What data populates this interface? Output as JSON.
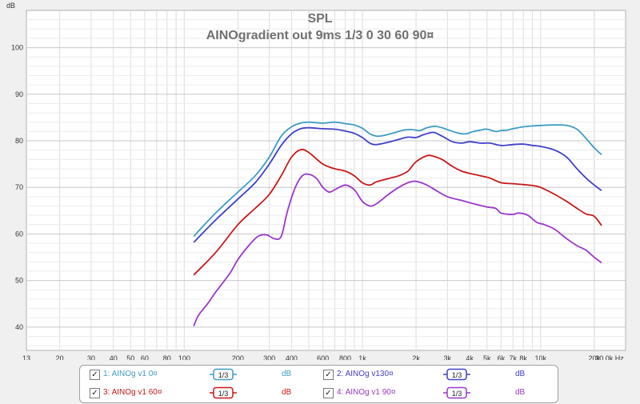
{
  "chart_data": {
    "type": "line",
    "title": "SPL",
    "subtitle": "AINOgradient out 9ms 1/3 0 30 60 90¤",
    "xscale": "log",
    "xlim": [
      13,
      30000
    ],
    "ylim": [
      35,
      108
    ],
    "yunit": "dB",
    "xunit": "Hz",
    "grid": true,
    "x_ticks": [
      {
        "v": 13,
        "l": "13"
      },
      {
        "v": 20,
        "l": "20"
      },
      {
        "v": 30,
        "l": "30"
      },
      {
        "v": 40,
        "l": "40"
      },
      {
        "v": 50,
        "l": "50"
      },
      {
        "v": 60,
        "l": "60"
      },
      {
        "v": 80,
        "l": "80"
      },
      {
        "v": 100,
        "l": "100"
      },
      {
        "v": 200,
        "l": "200"
      },
      {
        "v": 300,
        "l": "300"
      },
      {
        "v": 400,
        "l": "400"
      },
      {
        "v": 600,
        "l": "600"
      },
      {
        "v": 800,
        "l": "800"
      },
      {
        "v": 1000,
        "l": "1k"
      },
      {
        "v": 2000,
        "l": "2k"
      },
      {
        "v": 3000,
        "l": "3k"
      },
      {
        "v": 4000,
        "l": "4k"
      },
      {
        "v": 5000,
        "l": "5k"
      },
      {
        "v": 6000,
        "l": "6k"
      },
      {
        "v": 7000,
        "l": "7k"
      },
      {
        "v": 8000,
        "l": "8k"
      },
      {
        "v": 10000,
        "l": "10k"
      },
      {
        "v": 20000,
        "l": "20k"
      },
      {
        "v": 30000,
        "l": "30,0k Hz"
      }
    ],
    "y_ticks": [
      40,
      50,
      60,
      70,
      80,
      90,
      100
    ],
    "legend_position": "bottom",
    "series": [
      {
        "name": "1: AINOg v1 0¤",
        "color": "#3e9cc4",
        "points": [
          [
            113,
            59.5
          ],
          [
            150,
            64.5
          ],
          [
            200,
            69
          ],
          [
            250,
            72.5
          ],
          [
            300,
            76.5
          ],
          [
            350,
            81
          ],
          [
            400,
            83
          ],
          [
            450,
            83.8
          ],
          [
            500,
            84
          ],
          [
            600,
            83.8
          ],
          [
            700,
            84
          ],
          [
            800,
            83.7
          ],
          [
            900,
            83.4
          ],
          [
            1000,
            82.7
          ],
          [
            1100,
            81.5
          ],
          [
            1200,
            81
          ],
          [
            1300,
            81.1
          ],
          [
            1500,
            81.7
          ],
          [
            1700,
            82.3
          ],
          [
            1900,
            82.4
          ],
          [
            2100,
            82.2
          ],
          [
            2300,
            82.8
          ],
          [
            2600,
            83.1
          ],
          [
            3000,
            82.4
          ],
          [
            3400,
            81.7
          ],
          [
            3800,
            81.5
          ],
          [
            4200,
            82
          ],
          [
            4600,
            82.3
          ],
          [
            5000,
            82.5
          ],
          [
            5600,
            82
          ],
          [
            6000,
            82.2
          ],
          [
            6500,
            82.3
          ],
          [
            7000,
            82.6
          ],
          [
            8000,
            83
          ],
          [
            9000,
            83.2
          ],
          [
            10000,
            83.3
          ],
          [
            12000,
            83.4
          ],
          [
            14000,
            83.3
          ],
          [
            16000,
            82.5
          ],
          [
            18000,
            80.5
          ],
          [
            20000,
            78.5
          ],
          [
            22000,
            77
          ]
        ]
      },
      {
        "name": "2: AINOg v130¤",
        "color": "#4040c8",
        "points": [
          [
            113,
            58.2
          ],
          [
            150,
            63
          ],
          [
            200,
            67.5
          ],
          [
            250,
            71
          ],
          [
            300,
            75
          ],
          [
            350,
            79
          ],
          [
            400,
            81.5
          ],
          [
            450,
            82.6
          ],
          [
            500,
            82.8
          ],
          [
            600,
            82.6
          ],
          [
            700,
            82.5
          ],
          [
            800,
            82.1
          ],
          [
            900,
            81.6
          ],
          [
            1000,
            80.7
          ],
          [
            1100,
            79.5
          ],
          [
            1200,
            79.2
          ],
          [
            1400,
            79.7
          ],
          [
            1600,
            80.3
          ],
          [
            1800,
            80.8
          ],
          [
            2000,
            80.7
          ],
          [
            2200,
            81.3
          ],
          [
            2500,
            81.8
          ],
          [
            2800,
            81
          ],
          [
            3200,
            79.8
          ],
          [
            3600,
            79.5
          ],
          [
            4000,
            79.8
          ],
          [
            4600,
            79.5
          ],
          [
            5200,
            79.5
          ],
          [
            6000,
            79
          ],
          [
            7000,
            79.2
          ],
          [
            8000,
            79.3
          ],
          [
            9000,
            79
          ],
          [
            10000,
            78.8
          ],
          [
            12000,
            78
          ],
          [
            14000,
            76.5
          ],
          [
            16000,
            74
          ],
          [
            18000,
            72
          ],
          [
            20000,
            70.5
          ],
          [
            22000,
            69.3
          ]
        ]
      },
      {
        "name": "3: AINOg v1 60¤",
        "color": "#c81818",
        "points": [
          [
            113,
            51.2
          ],
          [
            150,
            56
          ],
          [
            200,
            62
          ],
          [
            250,
            65.5
          ],
          [
            300,
            68.5
          ],
          [
            350,
            72.5
          ],
          [
            400,
            76.5
          ],
          [
            450,
            78.1
          ],
          [
            500,
            77.5
          ],
          [
            600,
            75
          ],
          [
            700,
            74
          ],
          [
            800,
            73.5
          ],
          [
            900,
            72.5
          ],
          [
            1000,
            71
          ],
          [
            1100,
            70.5
          ],
          [
            1200,
            71.2
          ],
          [
            1400,
            71.9
          ],
          [
            1600,
            72.5
          ],
          [
            1800,
            73.5
          ],
          [
            2000,
            75.5
          ],
          [
            2300,
            76.8
          ],
          [
            2500,
            76.7
          ],
          [
            2800,
            76
          ],
          [
            3200,
            74.5
          ],
          [
            3600,
            73.5
          ],
          [
            4000,
            73
          ],
          [
            4600,
            72.5
          ],
          [
            5200,
            72
          ],
          [
            6000,
            71
          ],
          [
            7000,
            70.8
          ],
          [
            8000,
            70.6
          ],
          [
            9000,
            70.4
          ],
          [
            10000,
            70
          ],
          [
            12000,
            68.5
          ],
          [
            14000,
            67
          ],
          [
            16000,
            65.5
          ],
          [
            18000,
            64.3
          ],
          [
            20000,
            63.8
          ],
          [
            22000,
            61.8
          ]
        ]
      },
      {
        "name": "4: AINOg v1 90¤",
        "color": "#9a38c8",
        "points": [
          [
            113,
            40.2
          ],
          [
            120,
            42.5
          ],
          [
            135,
            45
          ],
          [
            150,
            47.5
          ],
          [
            180,
            51.5
          ],
          [
            200,
            54.5
          ],
          [
            230,
            57.5
          ],
          [
            260,
            59.5
          ],
          [
            290,
            59.8
          ],
          [
            320,
            59
          ],
          [
            350,
            59.5
          ],
          [
            380,
            65
          ],
          [
            420,
            70
          ],
          [
            460,
            72.5
          ],
          [
            500,
            72.8
          ],
          [
            550,
            72
          ],
          [
            600,
            70
          ],
          [
            650,
            69
          ],
          [
            700,
            69.5
          ],
          [
            800,
            70.5
          ],
          [
            900,
            69.5
          ],
          [
            1000,
            67
          ],
          [
            1100,
            66
          ],
          [
            1200,
            66.5
          ],
          [
            1400,
            68.5
          ],
          [
            1600,
            70
          ],
          [
            1800,
            71
          ],
          [
            2000,
            71.3
          ],
          [
            2300,
            70.5
          ],
          [
            2600,
            69.3
          ],
          [
            3000,
            68
          ],
          [
            3600,
            67.2
          ],
          [
            4200,
            66.5
          ],
          [
            5000,
            65.8
          ],
          [
            5600,
            65.5
          ],
          [
            6000,
            64.5
          ],
          [
            7000,
            64.2
          ],
          [
            7500,
            64.5
          ],
          [
            8500,
            64
          ],
          [
            9500,
            62.5
          ],
          [
            10500,
            62
          ],
          [
            12000,
            61
          ],
          [
            14000,
            59
          ],
          [
            16000,
            57.5
          ],
          [
            18000,
            56.5
          ],
          [
            20000,
            55
          ],
          [
            22000,
            53.8
          ]
        ]
      }
    ]
  },
  "legend": {
    "items": [
      {
        "check": "✓",
        "label": "1: AINOg v1 0¤",
        "smoothing": "1/3",
        "unit": "dB",
        "color": "#3e9cc4"
      },
      {
        "check": "✓",
        "label": "2: AINOg v130¤",
        "smoothing": "1/3",
        "unit": "dB",
        "color": "#4040c8"
      },
      {
        "check": "✓",
        "label": "3: AINOg v1 60¤",
        "smoothing": "1/3",
        "unit": "dB",
        "color": "#c81818"
      },
      {
        "check": "✓",
        "label": "4: AINOg v1 90¤",
        "smoothing": "1/3",
        "unit": "dB",
        "color": "#9a38c8"
      }
    ]
  }
}
